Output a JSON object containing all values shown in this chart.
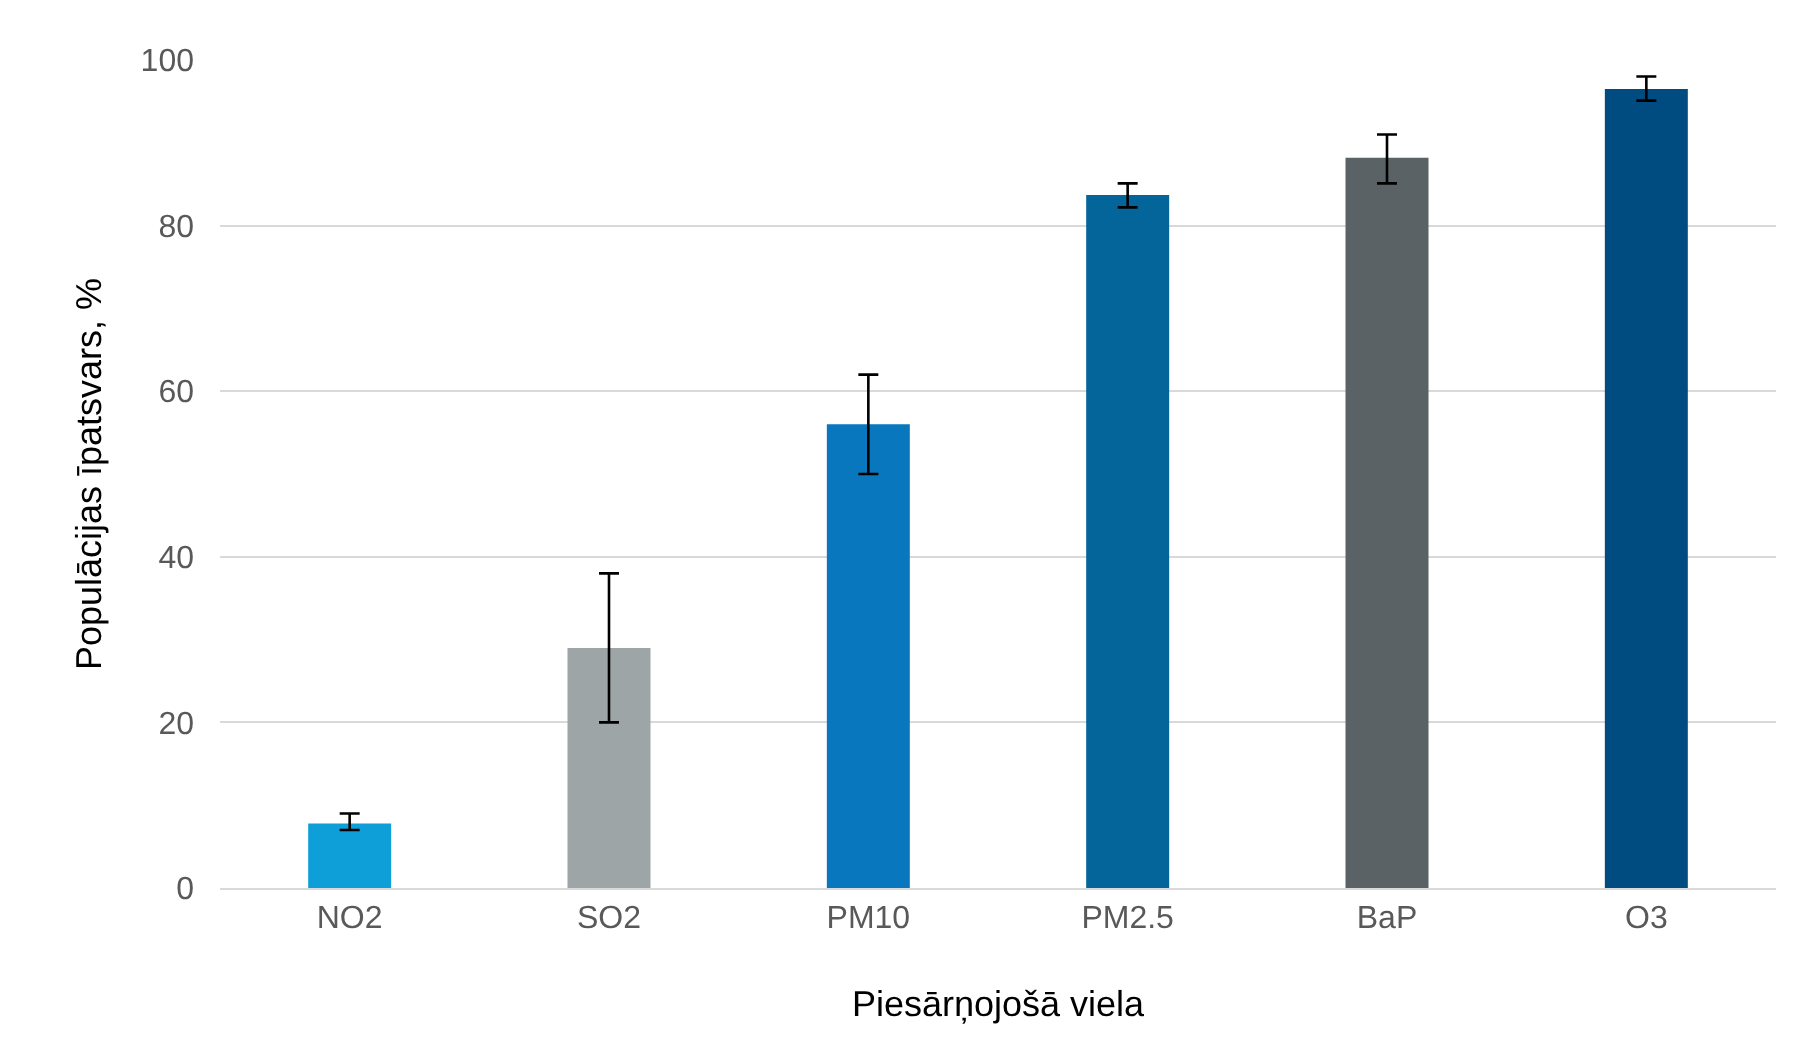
{
  "chart_data": {
    "type": "bar",
    "xlabel": "Piesārņojošā viela",
    "ylabel": "Populācijas īpatsvars, %",
    "categories": [
      "NO2",
      "SO2",
      "PM10",
      "PM2.5",
      "BaP",
      "O3"
    ],
    "values": [
      7.8,
      29,
      56,
      83.7,
      88.2,
      96.5
    ],
    "colors": [
      "#0e9ed8",
      "#9da5a6",
      "#0877bd",
      "#03659a",
      "#5a6265",
      "#004b7f"
    ],
    "errors": [
      [
        7,
        9
      ],
      [
        20,
        38
      ],
      [
        50,
        62
      ],
      [
        82.2,
        85.1
      ],
      [
        85.1,
        91
      ],
      [
        95.1,
        98
      ]
    ],
    "ylim": [
      0,
      100
    ],
    "yticks": [
      0,
      20,
      40,
      60,
      80,
      100
    ],
    "grid": "y"
  }
}
